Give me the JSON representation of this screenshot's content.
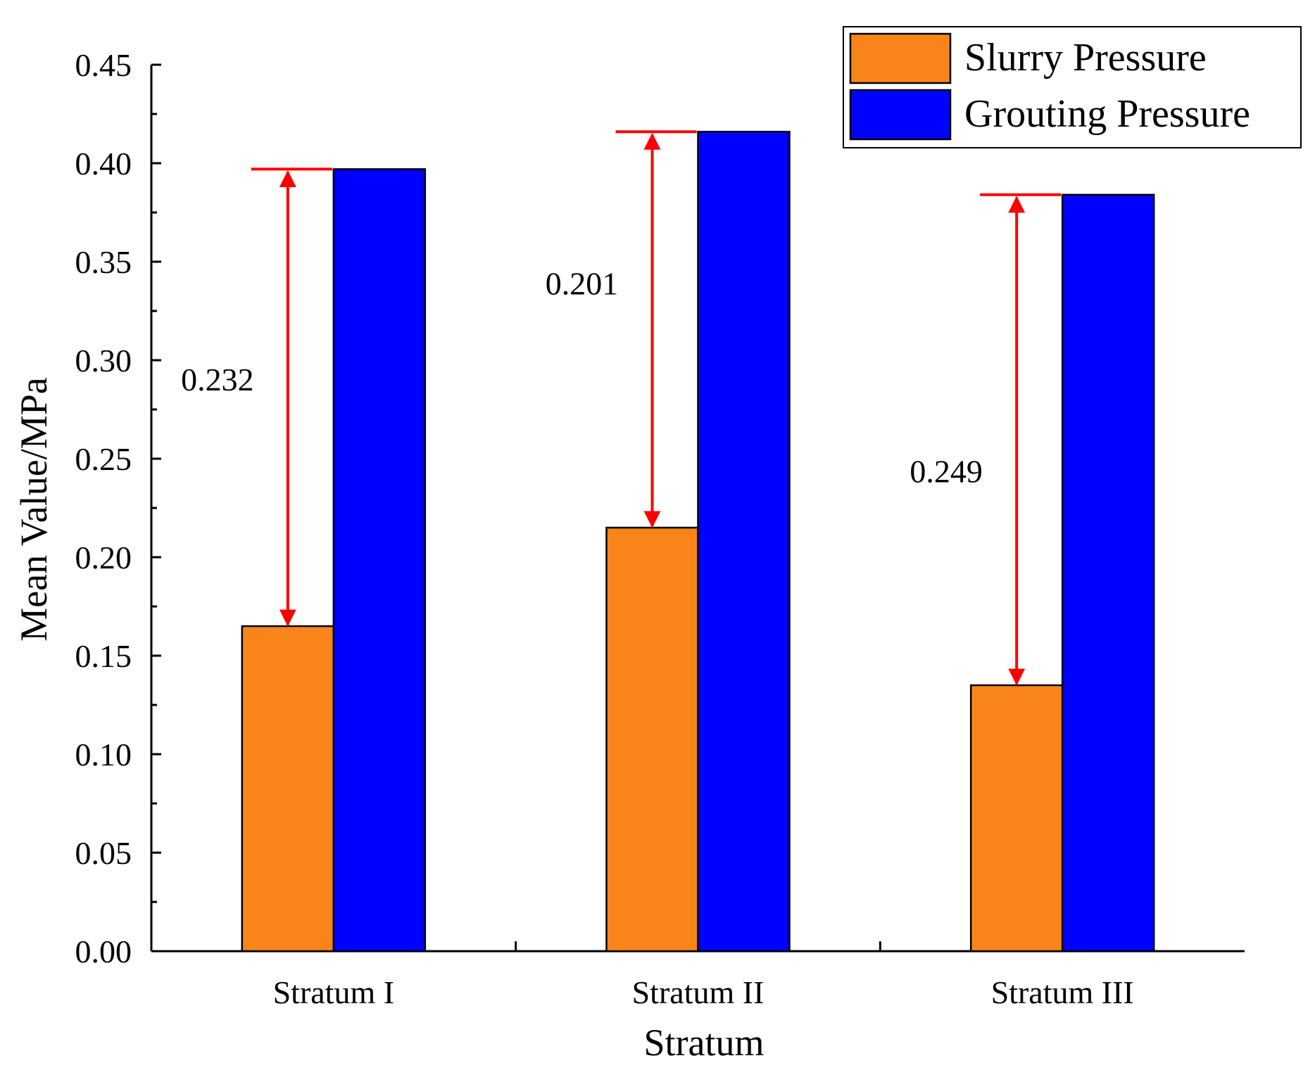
{
  "chart_data": {
    "type": "bar",
    "title": "",
    "xlabel": "Stratum",
    "ylabel": "Mean Value/MPa",
    "ylim": [
      0,
      0.45
    ],
    "yticks": [
      "0.00",
      "0.05",
      "0.10",
      "0.15",
      "0.20",
      "0.25",
      "0.30",
      "0.35",
      "0.40",
      "0.45"
    ],
    "categories": [
      "Stratum I",
      "Stratum II",
      "Stratum III"
    ],
    "series": [
      {
        "name": "Slurry Pressure",
        "color": "#F98419",
        "values": [
          0.165,
          0.215,
          0.135
        ]
      },
      {
        "name": "Grouting Pressure",
        "color": "#0000FF",
        "values": [
          0.397,
          0.416,
          0.384
        ]
      }
    ],
    "annotations": [
      {
        "category": "Stratum I",
        "label": "0.232",
        "from": 0.165,
        "to": 0.397,
        "color": "#FF0000"
      },
      {
        "category": "Stratum II",
        "label": "0.201",
        "from": 0.215,
        "to": 0.416,
        "color": "#FF0000"
      },
      {
        "category": "Stratum III",
        "label": "0.249",
        "from": 0.135,
        "to": 0.384,
        "color": "#FF0000"
      }
    ],
    "legend": {
      "position": "top-right"
    },
    "grid": false
  }
}
